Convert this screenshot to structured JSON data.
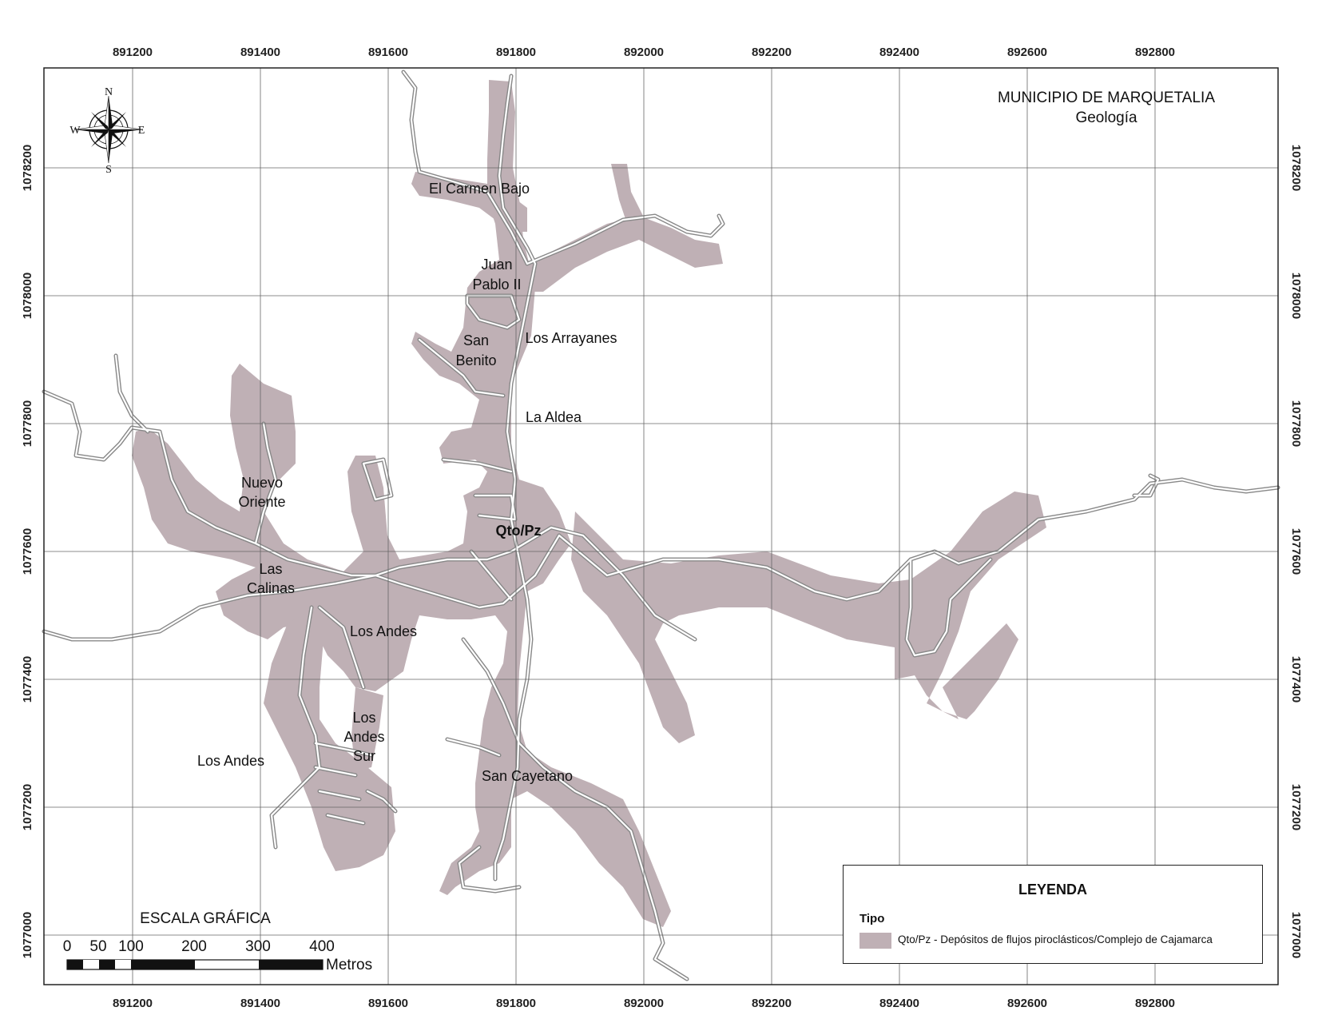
{
  "map": {
    "title": "MUNICIPIO DE MARQUETALIA",
    "subtitle": "Geología",
    "colors": {
      "deposit_fill": "#bfb0b5",
      "road": "#888888",
      "grid": "#666666",
      "frame": "#222222"
    },
    "x_ticks_top": [
      "891200",
      "891400",
      "891600",
      "891800",
      "892000",
      "892200",
      "892400",
      "892600",
      "892800"
    ],
    "x_ticks_bottom": [
      "891200",
      "891400",
      "891600",
      "891800",
      "892000",
      "892200",
      "892400",
      "892600",
      "892800"
    ],
    "y_ticks_left": [
      "1078200",
      "1078000",
      "1077800",
      "1077600",
      "1077400",
      "1077200",
      "1077000"
    ],
    "y_ticks_right": [
      "1078200",
      "1078000",
      "1077800",
      "1077600",
      "1077400",
      "1077200",
      "1077000"
    ],
    "unit_label": "Qto/Pz",
    "places": [
      "El Carmen Bajo",
      "Juan",
      "Pablo II",
      "San",
      "Benito",
      "Los Arrayanes",
      "La Aldea",
      "Nuevo",
      "Oriente",
      "Las",
      "Calinas",
      "Los Andes",
      "Los",
      "Andes",
      "Sur",
      "Los Andes",
      "San Cayetano"
    ]
  },
  "compass": {
    "n": "N",
    "s": "S",
    "e": "E",
    "w": "W",
    "icon": "compass-rose-icon"
  },
  "scale_bar": {
    "title": "ESCALA GRÁFICA",
    "labels": [
      "0",
      "50",
      "100",
      "200",
      "300",
      "400"
    ],
    "unit": "Metros"
  },
  "legend": {
    "title": "LEYENDA",
    "subtitle": "Tipo",
    "item_label": "Qto/Pz - Depósitos de flujos piroclásticos/Complejo de Cajamarca"
  }
}
